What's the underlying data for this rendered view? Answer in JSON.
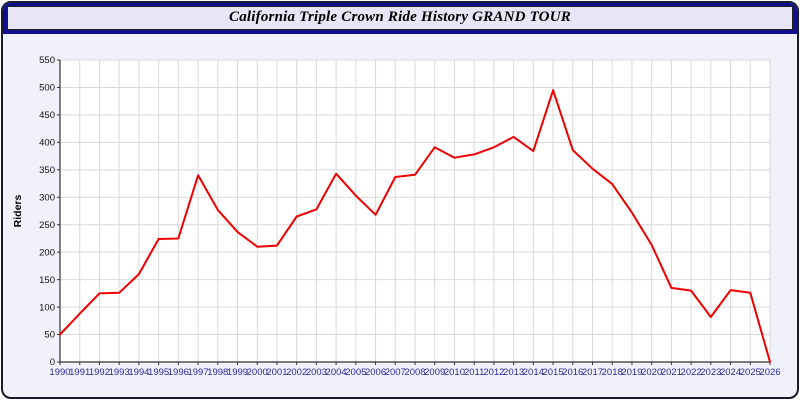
{
  "window": {
    "title": "California Triple Crown Ride History GRAND TOUR"
  },
  "colors": {
    "line": "#ee0000",
    "titlebar_bg": "#10108c",
    "frame_bg": "#f1f1fa",
    "plot_bg": "#ffffff",
    "grid": "#d9d9d9",
    "axis": "#333333",
    "xtick_label": "#2a2a9a",
    "ytick_label": "#111111"
  },
  "chart_data": {
    "type": "line",
    "title": "California Triple Crown Ride History GRAND TOUR",
    "xlabel": "",
    "ylabel": "Riders",
    "ylim": [
      0,
      550
    ],
    "ytick_step": 50,
    "grid": true,
    "legend": "none",
    "x": [
      1990,
      1991,
      1992,
      1993,
      1994,
      1995,
      1996,
      1997,
      1998,
      1999,
      2000,
      2001,
      2002,
      2003,
      2004,
      2005,
      2006,
      2007,
      2008,
      2009,
      2010,
      2011,
      2012,
      2013,
      2014,
      2015,
      2016,
      2017,
      2018,
      2019,
      2020,
      2021,
      2022,
      2023,
      2024,
      2025,
      2026
    ],
    "series": [
      {
        "name": "Riders",
        "color": "#ee0000",
        "values": [
          50,
          88,
          125,
          126,
          160,
          224,
          225,
          340,
          277,
          237,
          210,
          212,
          265,
          278,
          343,
          303,
          268,
          337,
          341,
          391,
          372,
          378,
          391,
          410,
          384,
          495,
          386,
          352,
          324,
          272,
          213,
          135,
          130,
          82,
          131,
          126,
          0
        ]
      }
    ]
  }
}
